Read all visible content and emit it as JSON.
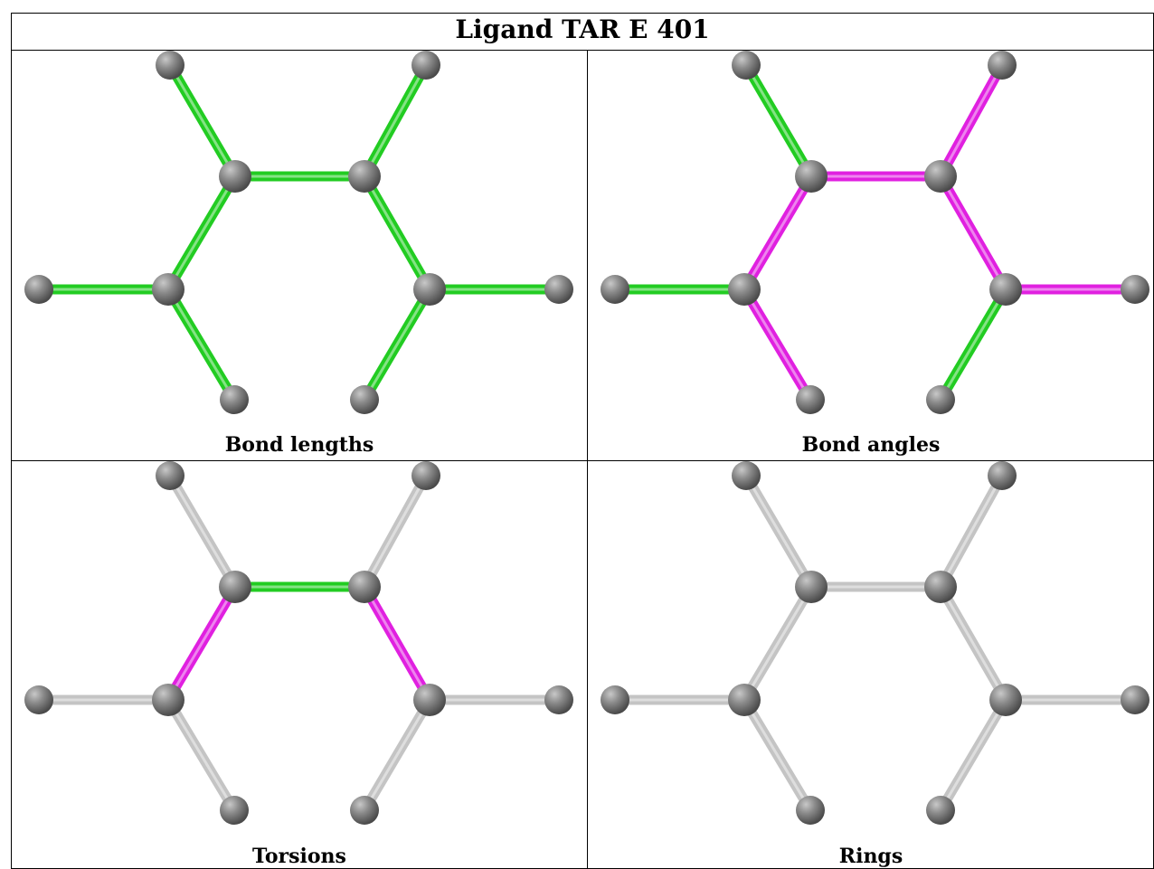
{
  "title": "Ligand TAR E 401",
  "panels": [
    {
      "caption": "Bond lengths",
      "bonds": [
        "green",
        "green",
        "green",
        "green",
        "green",
        "green",
        "green",
        "green",
        "green",
        "green",
        "green"
      ]
    },
    {
      "caption": "Bond angles",
      "bonds": [
        "green",
        "magenta",
        "magenta",
        "magenta",
        "green",
        "magenta",
        "magenta",
        "magenta",
        "green",
        "magenta",
        "green"
      ]
    },
    {
      "caption": "Torsions",
      "bonds": [
        "gray",
        "gray",
        "green",
        "magenta",
        "gray",
        "magenta",
        "gray",
        "gray",
        "gray",
        "gray",
        "gray"
      ]
    },
    {
      "caption": "Rings",
      "bonds": [
        "gray",
        "gray",
        "gray",
        "gray",
        "gray",
        "gray",
        "gray",
        "gray",
        "gray",
        "gray",
        "gray"
      ]
    }
  ],
  "colors": {
    "green": "#22cc22",
    "magenta": "#e020e0",
    "gray": "#c4c4c4",
    "atom": "#808080"
  }
}
